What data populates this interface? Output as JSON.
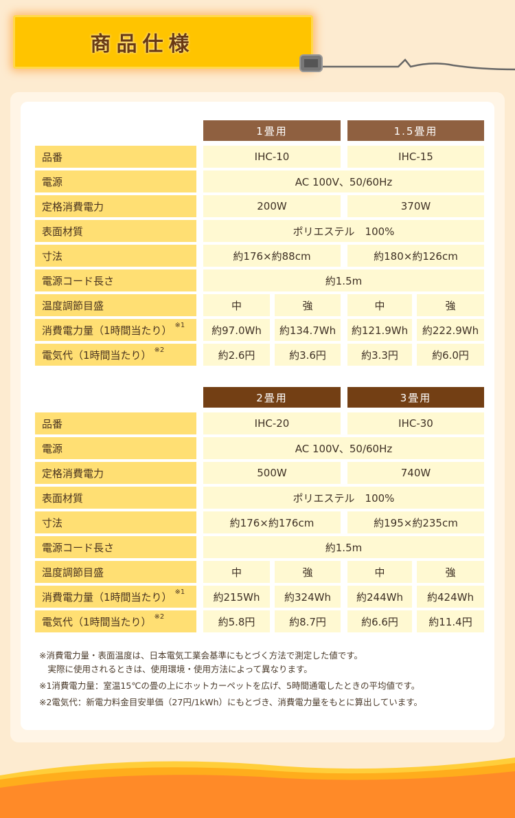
{
  "title": "商品仕様",
  "colors": {
    "title_bg": "#ffc400",
    "header1": "#8f6040",
    "header2": "#733f14",
    "label_bg": "#ffdf73",
    "value_bg": "#fff9d2",
    "wave": "#ff8a28"
  },
  "tables": [
    {
      "headers": [
        "1畳用",
        "1.5畳用"
      ],
      "rows": [
        {
          "label": "品番",
          "type": "pair",
          "values": [
            "IHC-10",
            "IHC-15"
          ]
        },
        {
          "label": "電源",
          "type": "span",
          "values": [
            "AC 100V、50/60Hz"
          ]
        },
        {
          "label": "定格消費電力",
          "type": "pair",
          "values": [
            "200W",
            "370W"
          ]
        },
        {
          "label": "表面材質",
          "type": "span",
          "values": [
            "ポリエステル　100%"
          ]
        },
        {
          "label": "寸法",
          "type": "pair",
          "values": [
            "約176×約88cm",
            "約180×約126cm"
          ]
        },
        {
          "label": "電源コード長さ",
          "type": "span",
          "values": [
            "約1.5m"
          ]
        },
        {
          "label": "温度調節目盛",
          "type": "quad",
          "values": [
            "中",
            "強",
            "中",
            "強"
          ]
        },
        {
          "label": "消費電力量（1時間当たり）",
          "note": "※1",
          "type": "quad",
          "values": [
            "約97.0Wh",
            "約134.7Wh",
            "約121.9Wh",
            "約222.9Wh"
          ]
        },
        {
          "label": "電気代（1時間当たり）",
          "note": "※2",
          "type": "quad",
          "values": [
            "約2.6円",
            "約3.6円",
            "約3.3円",
            "約6.0円"
          ]
        }
      ]
    },
    {
      "headers": [
        "2畳用",
        "3畳用"
      ],
      "rows": [
        {
          "label": "品番",
          "type": "pair",
          "values": [
            "IHC-20",
            "IHC-30"
          ]
        },
        {
          "label": "電源",
          "type": "span",
          "values": [
            "AC 100V、50/60Hz"
          ]
        },
        {
          "label": "定格消費電力",
          "type": "pair",
          "values": [
            "500W",
            "740W"
          ]
        },
        {
          "label": "表面材質",
          "type": "span",
          "values": [
            "ポリエステル　100%"
          ]
        },
        {
          "label": "寸法",
          "type": "pair",
          "values": [
            "約176×約176cm",
            "約195×約235cm"
          ]
        },
        {
          "label": "電源コード長さ",
          "type": "span",
          "values": [
            "約1.5m"
          ]
        },
        {
          "label": "温度調節目盛",
          "type": "quad",
          "values": [
            "中",
            "強",
            "中",
            "強"
          ]
        },
        {
          "label": "消費電力量（1時間当たり）",
          "note": "※1",
          "type": "quad",
          "values": [
            "約215Wh",
            "約324Wh",
            "約244Wh",
            "約424Wh"
          ]
        },
        {
          "label": "電気代（1時間当たり）",
          "note": "※2",
          "type": "quad",
          "values": [
            "約5.8円",
            "約8.7円",
            "約6.6円",
            "約11.4円"
          ]
        }
      ]
    }
  ],
  "notes": [
    "※消費電力量・表面温度は、日本電気工業会基準にもとづく方法で測定した値です。",
    "　実際に使用されるときは、使用環境・使用方法によって異なります。",
    "※1消費電力量：室温15℃の畳の上にホットカーペットを広げ、5時間通電したときの平均値です。",
    "※2電気代：新電力料金目安単価（27円/1kWh）にもとづき、消費電力量をもとに算出しています。"
  ]
}
